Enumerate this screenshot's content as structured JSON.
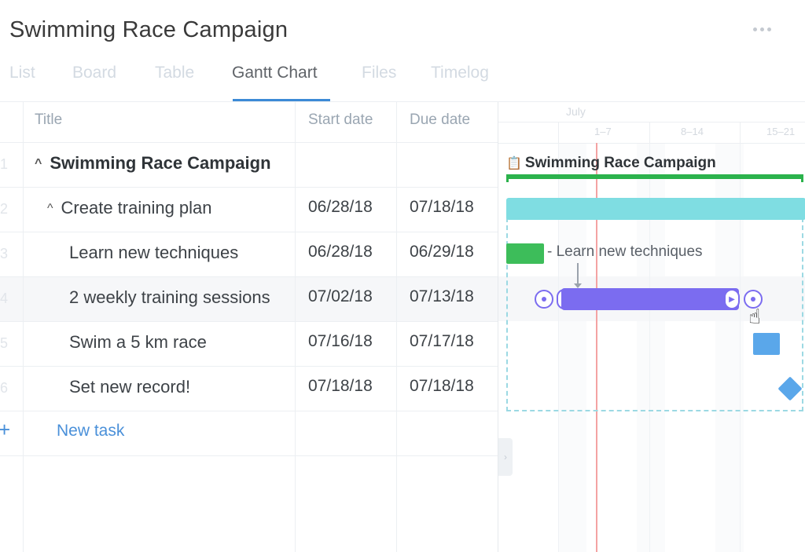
{
  "header": {
    "title": "Swimming Race Campaign",
    "more_icon": "more-horizontal-icon"
  },
  "tabs": [
    {
      "label": "List",
      "active": false
    },
    {
      "label": "Board",
      "active": false
    },
    {
      "label": "Table",
      "active": false
    },
    {
      "label": "Gantt Chart",
      "active": true
    },
    {
      "label": "Files",
      "active": false
    },
    {
      "label": "Timelog",
      "active": false
    }
  ],
  "grid": {
    "columns": {
      "title": "Title",
      "start": "Start date",
      "due": "Due date"
    },
    "rows": [
      {
        "num": "1",
        "title": "Swimming Race Campaign",
        "start": "",
        "due": ""
      },
      {
        "num": "2",
        "title": "Create training plan",
        "start": "06/28/18",
        "due": "07/18/18"
      },
      {
        "num": "3",
        "title": "Learn new techniques",
        "start": "06/28/18",
        "due": "06/29/18"
      },
      {
        "num": "4",
        "title": "2 weekly training sessions",
        "start": "07/02/18",
        "due": "07/13/18"
      },
      {
        "num": "5",
        "title": "Swim a 5 km race",
        "start": "07/16/18",
        "due": "07/17/18"
      },
      {
        "num": "6",
        "title": "Set new record!",
        "start": "07/18/18",
        "due": "07/18/18"
      }
    ],
    "new_task": {
      "icon": "+",
      "label": "New task"
    }
  },
  "gantt": {
    "month": "July",
    "weeks": [
      "1–7",
      "8–14",
      "15–21"
    ],
    "project_label": "Swimming Race Campaign",
    "project_icon": "clipboard-icon",
    "task_label": "Learn new techniques",
    "cursor_icon": "hand-pointer-icon",
    "colors": {
      "project": "#2bb24c",
      "folder": "#7fdde2",
      "task_green": "#3dbd5a",
      "task_purple": "#7b6cf0",
      "task_blue": "#5aa7ea",
      "today": "#f4a3a3",
      "tab_active": "#3c8ad6"
    }
  }
}
